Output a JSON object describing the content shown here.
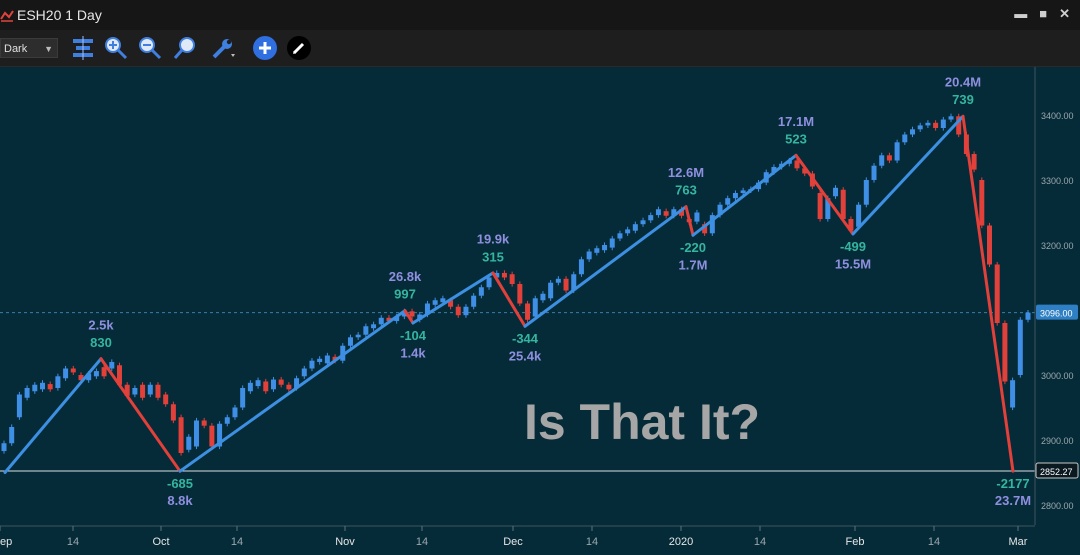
{
  "window": {
    "title": "ESH20 1 Day"
  },
  "window_controls": {
    "minimize": "▬",
    "maximize": "■",
    "close": "✕"
  },
  "toolbar": {
    "theme_value": "Dark"
  },
  "chart_data": {
    "type": "candlestick",
    "annotation": "Is That It?",
    "y_ticks": [
      "3400.00",
      "3300.00",
      "3200.00",
      "3100.00",
      "3000.00",
      "2900.00",
      "2800.00"
    ],
    "y_tick_values": [
      3400,
      3300,
      3200,
      3100,
      3000,
      2900,
      2800
    ],
    "ylim": [
      2760,
      3470
    ],
    "x_ticks": [
      "ep",
      "14",
      "Oct",
      "14",
      "Nov",
      "14",
      "Dec",
      "14",
      "2020",
      "14",
      "Feb",
      "14",
      "Mar"
    ],
    "last_price_label": "3096.00",
    "last_price": 3096,
    "support_label": "2852.27",
    "support_price": 2852.27,
    "zigzag_points": [
      {
        "x": 5,
        "price": 2850
      },
      {
        "x": 101,
        "price": 3025
      },
      {
        "x": 180,
        "price": 2852
      },
      {
        "x": 405,
        "price": 3099
      },
      {
        "x": 413,
        "price": 3080
      },
      {
        "x": 493,
        "price": 3157
      },
      {
        "x": 525,
        "price": 3075
      },
      {
        "x": 686,
        "price": 3259
      },
      {
        "x": 693,
        "price": 3215
      },
      {
        "x": 796,
        "price": 3338
      },
      {
        "x": 853,
        "price": 3217
      },
      {
        "x": 963,
        "price": 3398
      },
      {
        "x": 1013,
        "price": 2852
      }
    ],
    "swing_labels": [
      {
        "value": "2.5k",
        "color": "purple",
        "x": 101,
        "price": 3070
      },
      {
        "value": "830",
        "color": "teal",
        "x": 101,
        "price": 3043
      },
      {
        "value": "-685",
        "color": "teal",
        "x": 180,
        "price": 2826
      },
      {
        "value": "8.8k",
        "color": "purple",
        "x": 180,
        "price": 2800
      },
      {
        "value": "26.8k",
        "color": "purple",
        "x": 405,
        "price": 3145
      },
      {
        "value": "997",
        "color": "teal",
        "x": 405,
        "price": 3118
      },
      {
        "value": "-104",
        "color": "teal",
        "x": 413,
        "price": 3054
      },
      {
        "value": "1.4k",
        "color": "purple",
        "x": 413,
        "price": 3027
      },
      {
        "value": "19.9k",
        "color": "purple",
        "x": 493,
        "price": 3202
      },
      {
        "value": "315",
        "color": "teal",
        "x": 493,
        "price": 3175
      },
      {
        "value": "-344",
        "color": "teal",
        "x": 525,
        "price": 3049
      },
      {
        "value": "25.4k",
        "color": "purple",
        "x": 525,
        "price": 3022
      },
      {
        "value": "12.6M",
        "color": "purple",
        "x": 686,
        "price": 3305
      },
      {
        "value": "763",
        "color": "teal",
        "x": 686,
        "price": 3278
      },
      {
        "value": "-220",
        "color": "teal",
        "x": 693,
        "price": 3189
      },
      {
        "value": "1.7M",
        "color": "purple",
        "x": 693,
        "price": 3162
      },
      {
        "value": "17.1M",
        "color": "purple",
        "x": 796,
        "price": 3383
      },
      {
        "value": "523",
        "color": "teal",
        "x": 796,
        "price": 3356
      },
      {
        "value": "-499",
        "color": "teal",
        "x": 853,
        "price": 3191
      },
      {
        "value": "15.5M",
        "color": "purple",
        "x": 853,
        "price": 3164
      },
      {
        "value": "20.4M",
        "color": "purple",
        "x": 963,
        "price": 3444
      },
      {
        "value": "739",
        "color": "teal",
        "x": 963,
        "price": 3417
      },
      {
        "value": "-2177",
        "color": "teal",
        "x": 1013,
        "price": 2826
      },
      {
        "value": "23.7M",
        "color": "purple",
        "x": 1013,
        "price": 2800
      }
    ],
    "candles": [
      {
        "o": 2883,
        "c": 2895
      },
      {
        "o": 2895,
        "c": 2920
      },
      {
        "o": 2935,
        "c": 2970
      },
      {
        "o": 2965,
        "c": 2980
      },
      {
        "o": 2975,
        "c": 2985
      },
      {
        "o": 2978,
        "c": 2988
      },
      {
        "o": 2986,
        "c": 2978
      },
      {
        "o": 2980,
        "c": 2998
      },
      {
        "o": 2995,
        "c": 3010
      },
      {
        "o": 3010,
        "c": 3004
      },
      {
        "o": 3000,
        "c": 2992
      },
      {
        "o": 2992,
        "c": 3002
      },
      {
        "o": 2998,
        "c": 3006
      },
      {
        "o": 3012,
        "c": 2998
      },
      {
        "o": 3010,
        "c": 3020
      },
      {
        "o": 3015,
        "c": 2985
      },
      {
        "o": 2985,
        "c": 2968
      },
      {
        "o": 2970,
        "c": 2980
      },
      {
        "o": 2985,
        "c": 2965
      },
      {
        "o": 2970,
        "c": 2985
      },
      {
        "o": 2985,
        "c": 2965
      },
      {
        "o": 2970,
        "c": 2955
      },
      {
        "o": 2955,
        "c": 2930
      },
      {
        "o": 2935,
        "c": 2880
      },
      {
        "o": 2885,
        "c": 2905
      },
      {
        "o": 2890,
        "c": 2930
      },
      {
        "o": 2930,
        "c": 2922
      },
      {
        "o": 2922,
        "c": 2890
      },
      {
        "o": 2890,
        "c": 2925
      },
      {
        "o": 2925,
        "c": 2935
      },
      {
        "o": 2935,
        "c": 2950
      },
      {
        "o": 2950,
        "c": 2980
      },
      {
        "o": 2975,
        "c": 2988
      },
      {
        "o": 2983,
        "c": 2992
      },
      {
        "o": 2990,
        "c": 2975
      },
      {
        "o": 2978,
        "c": 2993
      },
      {
        "o": 2993,
        "c": 2985
      },
      {
        "o": 2985,
        "c": 2978
      },
      {
        "o": 2980,
        "c": 2995
      },
      {
        "o": 2998,
        "c": 3010
      },
      {
        "o": 3010,
        "c": 3022
      },
      {
        "o": 3020,
        "c": 3025
      },
      {
        "o": 3018,
        "c": 3030
      },
      {
        "o": 3028,
        "c": 3022
      },
      {
        "o": 3022,
        "c": 3045
      },
      {
        "o": 3045,
        "c": 3058
      },
      {
        "o": 3058,
        "c": 3062
      },
      {
        "o": 3062,
        "c": 3075
      },
      {
        "o": 3072,
        "c": 3078
      },
      {
        "o": 3078,
        "c": 3088
      },
      {
        "o": 3088,
        "c": 3083
      },
      {
        "o": 3083,
        "c": 3090
      },
      {
        "o": 3090,
        "c": 3098
      },
      {
        "o": 3098,
        "c": 3090
      },
      {
        "o": 3085,
        "c": 3093
      },
      {
        "o": 3093,
        "c": 3110
      },
      {
        "o": 3108,
        "c": 3115
      },
      {
        "o": 3112,
        "c": 3118
      },
      {
        "o": 3115,
        "c": 3105
      },
      {
        "o": 3105,
        "c": 3092
      },
      {
        "o": 3092,
        "c": 3105
      },
      {
        "o": 3105,
        "c": 3122
      },
      {
        "o": 3122,
        "c": 3135
      },
      {
        "o": 3135,
        "c": 3150
      },
      {
        "o": 3150,
        "c": 3157
      },
      {
        "o": 3157,
        "c": 3150
      },
      {
        "o": 3155,
        "c": 3140
      },
      {
        "o": 3140,
        "c": 3110
      },
      {
        "o": 3110,
        "c": 3085
      },
      {
        "o": 3090,
        "c": 3118
      },
      {
        "o": 3115,
        "c": 3125
      },
      {
        "o": 3118,
        "c": 3142
      },
      {
        "o": 3142,
        "c": 3148
      },
      {
        "o": 3148,
        "c": 3130
      },
      {
        "o": 3130,
        "c": 3155
      },
      {
        "o": 3155,
        "c": 3178
      },
      {
        "o": 3178,
        "c": 3190
      },
      {
        "o": 3188,
        "c": 3195
      },
      {
        "o": 3192,
        "c": 3200
      },
      {
        "o": 3196,
        "c": 3210
      },
      {
        "o": 3210,
        "c": 3218
      },
      {
        "o": 3218,
        "c": 3224
      },
      {
        "o": 3222,
        "c": 3232
      },
      {
        "o": 3232,
        "c": 3238
      },
      {
        "o": 3238,
        "c": 3246
      },
      {
        "o": 3246,
        "c": 3255
      },
      {
        "o": 3252,
        "c": 3245
      },
      {
        "o": 3245,
        "c": 3255
      },
      {
        "o": 3255,
        "c": 3245
      },
      {
        "o": 3240,
        "c": 3235
      },
      {
        "o": 3236,
        "c": 3250
      },
      {
        "o": 3232,
        "c": 3218
      },
      {
        "o": 3218,
        "c": 3246
      },
      {
        "o": 3246,
        "c": 3262
      },
      {
        "o": 3262,
        "c": 3272
      },
      {
        "o": 3272,
        "c": 3280
      },
      {
        "o": 3280,
        "c": 3284
      },
      {
        "o": 3284,
        "c": 3286
      },
      {
        "o": 3286,
        "c": 3296
      },
      {
        "o": 3296,
        "c": 3312
      },
      {
        "o": 3312,
        "c": 3320
      },
      {
        "o": 3320,
        "c": 3325
      },
      {
        "o": 3325,
        "c": 3330
      },
      {
        "o": 3330,
        "c": 3318
      },
      {
        "o": 3318,
        "c": 3310
      },
      {
        "o": 3310,
        "c": 3290
      },
      {
        "o": 3280,
        "c": 3240
      },
      {
        "o": 3240,
        "c": 3272
      },
      {
        "o": 3275,
        "c": 3288
      },
      {
        "o": 3285,
        "c": 3240
      },
      {
        "o": 3240,
        "c": 3222
      },
      {
        "o": 3228,
        "c": 3262
      },
      {
        "o": 3262,
        "c": 3300
      },
      {
        "o": 3300,
        "c": 3322
      },
      {
        "o": 3322,
        "c": 3338
      },
      {
        "o": 3338,
        "c": 3330
      },
      {
        "o": 3330,
        "c": 3358
      },
      {
        "o": 3358,
        "c": 3370
      },
      {
        "o": 3370,
        "c": 3378
      },
      {
        "o": 3378,
        "c": 3384
      },
      {
        "o": 3384,
        "c": 3388
      },
      {
        "o": 3388,
        "c": 3380
      },
      {
        "o": 3380,
        "c": 3393
      },
      {
        "o": 3393,
        "c": 3398
      },
      {
        "o": 3398,
        "c": 3370
      },
      {
        "o": 3370,
        "c": 3340
      },
      {
        "o": 3340,
        "c": 3316
      },
      {
        "o": 3300,
        "c": 3230
      },
      {
        "o": 3230,
        "c": 3170
      },
      {
        "o": 3170,
        "c": 3080
      },
      {
        "o": 3080,
        "c": 2990
      },
      {
        "o": 2950,
        "c": 2992
      },
      {
        "o": 3000,
        "c": 3085
      },
      {
        "o": 3085,
        "c": 3096
      }
    ]
  }
}
